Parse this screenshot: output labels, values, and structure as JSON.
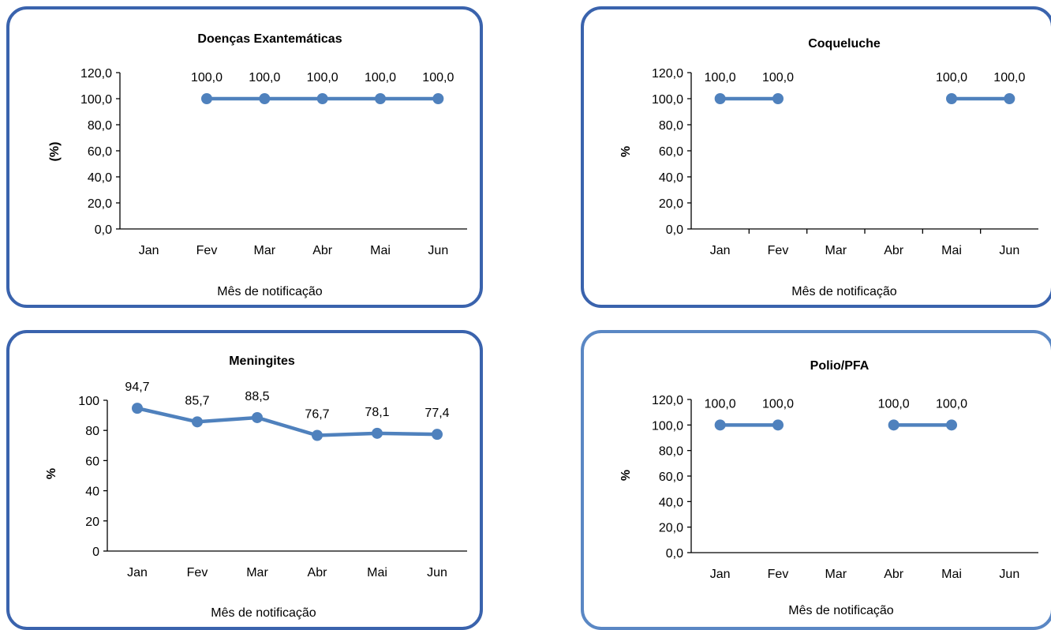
{
  "colors": {
    "series": "#4f81bd",
    "border": "#3a63ad",
    "border_light": "#5a87c4",
    "axis": "#000000"
  },
  "chart_data": [
    {
      "type": "line",
      "title": "Doenças Exantemáticas",
      "xlabel": "Mês de notificação",
      "ylabel": "(%)",
      "categories": [
        "Jan",
        "Fev",
        "Mar",
        "Abr",
        "Mai",
        "Jun"
      ],
      "values": [
        null,
        100.0,
        100.0,
        100.0,
        100.0,
        100.0
      ],
      "value_labels": [
        null,
        "100,0",
        "100,0",
        "100,0",
        "100,0",
        "100,0"
      ],
      "y_ticks": [
        "0,0",
        "20,0",
        "40,0",
        "60,0",
        "80,0",
        "100,0",
        "120,0"
      ],
      "ylim": [
        0,
        120
      ],
      "x_tick_marks": false
    },
    {
      "type": "line",
      "title": "Coqueluche",
      "xlabel": "Mês de notificação",
      "ylabel": "%",
      "categories": [
        "Jan",
        "Fev",
        "Mar",
        "Abr",
        "Mai",
        "Jun"
      ],
      "values": [
        100.0,
        100.0,
        null,
        null,
        100.0,
        100.0
      ],
      "value_labels": [
        "100,0",
        "100,0",
        null,
        null,
        "100,0",
        "100,0"
      ],
      "y_ticks": [
        "0,0",
        "20,0",
        "40,0",
        "60,0",
        "80,0",
        "100,0",
        "120,0"
      ],
      "ylim": [
        0,
        120
      ],
      "x_tick_marks": true
    },
    {
      "type": "line",
      "title": "Meningites",
      "xlabel": "Mês de notificação",
      "ylabel": "%",
      "categories": [
        "Jan",
        "Fev",
        "Mar",
        "Abr",
        "Mai",
        "Jun"
      ],
      "values": [
        94.7,
        85.7,
        88.5,
        76.7,
        78.1,
        77.4
      ],
      "value_labels": [
        "94,7",
        "85,7",
        "88,5",
        "76,7",
        "78,1",
        "77,4"
      ],
      "y_ticks": [
        "0",
        "20",
        "40",
        "60",
        "80",
        "100"
      ],
      "ylim": [
        0,
        100
      ],
      "x_tick_marks": false
    },
    {
      "type": "line",
      "title": "Polio/PFA",
      "xlabel": "Mês de notificação",
      "ylabel": "%",
      "categories": [
        "Jan",
        "Fev",
        "Mar",
        "Abr",
        "Mai",
        "Jun"
      ],
      "values": [
        100.0,
        100.0,
        null,
        100.0,
        100.0,
        null
      ],
      "value_labels": [
        "100,0",
        "100,0",
        null,
        "100,0",
        "100,0",
        null
      ],
      "y_ticks": [
        "0,0",
        "20,0",
        "40,0",
        "60,0",
        "80,0",
        "100,0",
        "120,0"
      ],
      "ylim": [
        0,
        120
      ],
      "x_tick_marks": false
    }
  ]
}
